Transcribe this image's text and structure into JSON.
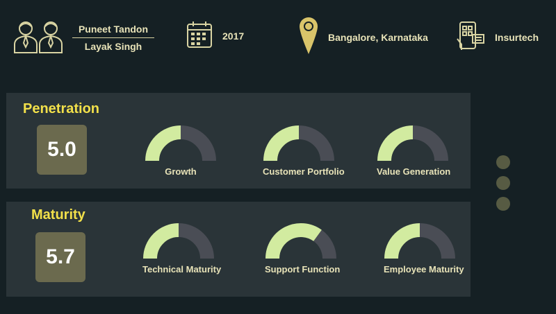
{
  "header": {
    "founders": [
      "Puneet Tandon",
      "Layak Singh"
    ],
    "year": "2017",
    "location": "Bangalore, Karnataka",
    "industry": "Insurtech"
  },
  "sections": [
    {
      "title": "Penetration",
      "score": "5.0",
      "gauges": [
        {
          "label": "Growth",
          "value": 0.5
        },
        {
          "label": "Customer Portfolio",
          "value": 0.5
        },
        {
          "label": "Value Generation",
          "value": 0.5
        }
      ]
    },
    {
      "title": "Maturity",
      "score": "5.7",
      "gauges": [
        {
          "label": "Technical Maturity",
          "value": 0.5
        },
        {
          "label": "Support Function",
          "value": 0.7
        },
        {
          "label": "Employee Maturity",
          "value": 0.5
        }
      ]
    }
  ],
  "colors": {
    "background": "#152024",
    "panel": "#2a3438",
    "accent_title": "#f2e04a",
    "gauge_fill": "#d2eba0",
    "gauge_track": "#4a4d55",
    "score_box": "#6b6a4e",
    "dots": "#575b43"
  },
  "icons": [
    "two-people-icon",
    "calendar-icon",
    "map-pin-icon",
    "mobile-app-icon"
  ]
}
